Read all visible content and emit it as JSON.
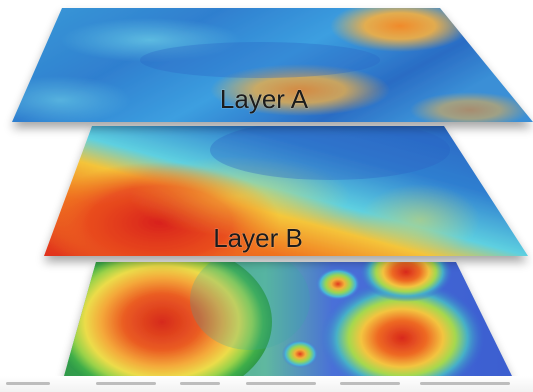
{
  "layers": [
    {
      "label": "Layer A"
    },
    {
      "label": "Layer B"
    },
    {
      "label": ""
    }
  ]
}
